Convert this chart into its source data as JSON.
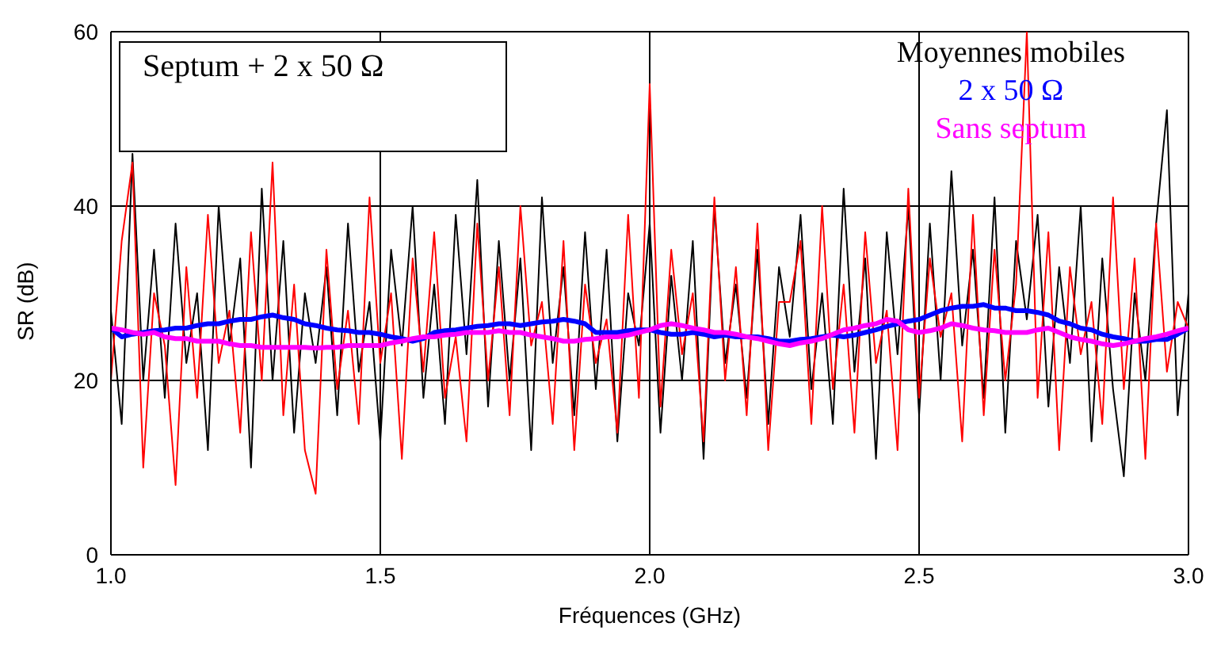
{
  "chart_data": {
    "type": "line",
    "xlabel": "Fréquences (GHz)",
    "ylabel": "SR (dB)",
    "xlim": [
      1.0,
      3.0
    ],
    "xticks": [
      {
        "value": 1.0,
        "label": "1.0"
      },
      1.5,
      {
        "value": 2.0,
        "label": "2.0"
      },
      2.5,
      {
        "value": 3.0,
        "label": "3.0"
      }
    ],
    "ylim": [
      0,
      60
    ],
    "yticks": [
      0,
      20,
      40,
      60
    ],
    "grid": true,
    "legend": "top right",
    "legend_title": "Moyennes mobiles",
    "marker": "none",
    "line_style": "solid",
    "annotations": [
      "Septum + 2 x 50 Ω"
    ],
    "x": [
      1.0,
      1.02,
      1.04,
      1.06,
      1.08,
      1.1,
      1.12,
      1.14,
      1.16,
      1.18,
      1.2,
      1.22,
      1.24,
      1.26,
      1.28,
      1.3,
      1.32,
      1.34,
      1.36,
      1.38,
      1.4,
      1.42,
      1.44,
      1.46,
      1.48,
      1.5,
      1.52,
      1.54,
      1.56,
      1.58,
      1.6,
      1.62,
      1.64,
      1.66,
      1.68,
      1.7,
      1.72,
      1.74,
      1.76,
      1.78,
      1.8,
      1.82,
      1.84,
      1.86,
      1.88,
      1.9,
      1.92,
      1.94,
      1.96,
      1.98,
      2.0,
      2.02,
      2.04,
      2.06,
      2.08,
      2.1,
      2.12,
      2.14,
      2.16,
      2.18,
      2.2,
      2.22,
      2.24,
      2.26,
      2.28,
      2.3,
      2.32,
      2.34,
      2.36,
      2.38,
      2.4,
      2.42,
      2.44,
      2.46,
      2.48,
      2.5,
      2.52,
      2.54,
      2.56,
      2.58,
      2.6,
      2.62,
      2.64,
      2.66,
      2.68,
      2.7,
      2.72,
      2.74,
      2.76,
      2.78,
      2.8,
      2.82,
      2.84,
      2.86,
      2.88,
      2.9,
      2.92,
      2.94,
      2.96,
      2.98,
      3.0
    ],
    "series": [
      {
        "color": "#000000",
        "values": [
          28,
          15,
          46,
          20,
          35,
          18,
          38,
          22,
          30,
          12,
          40,
          24,
          34,
          10,
          42,
          20,
          36,
          14,
          30,
          22,
          33,
          16,
          38,
          21,
          29,
          13,
          35,
          24,
          40,
          18,
          31,
          15,
          39,
          23,
          43,
          17,
          36,
          20,
          34,
          12,
          41,
          22,
          33,
          16,
          37,
          19,
          35,
          13,
          30,
          24,
          38,
          14,
          32,
          20,
          36,
          11,
          40,
          22,
          31,
          18,
          35,
          15,
          33,
          25,
          39,
          19,
          30,
          15,
          42,
          21,
          34,
          11,
          37,
          23,
          40,
          16,
          38,
          20,
          44,
          24,
          35,
          18,
          41,
          14,
          36,
          27,
          39,
          17,
          33,
          22,
          40,
          13,
          34,
          19,
          9,
          30,
          20,
          38,
          51,
          16,
          30
        ]
      },
      {
        "color": "#ff0000",
        "values": [
          20,
          36,
          45,
          10,
          30,
          24,
          8,
          33,
          18,
          39,
          22,
          28,
          14,
          37,
          20,
          45,
          16,
          31,
          12,
          7,
          35,
          19,
          28,
          15,
          41,
          22,
          30,
          11,
          34,
          21,
          37,
          18,
          25,
          13,
          38,
          20,
          33,
          16,
          40,
          24,
          29,
          15,
          36,
          12,
          31,
          22,
          27,
          14,
          39,
          18,
          54,
          17,
          35,
          23,
          30,
          13,
          41,
          20,
          33,
          16,
          38,
          12,
          29,
          29,
          36,
          15,
          40,
          19,
          31,
          14,
          37,
          22,
          28,
          12,
          42,
          18,
          34,
          25,
          30,
          13,
          39,
          16,
          35,
          20,
          31,
          60,
          18,
          37,
          12,
          33,
          23,
          29,
          15,
          41,
          19,
          34,
          11,
          38,
          21,
          29,
          26
        ]
      },
      {
        "name": "2 x 50 Ω",
        "color": "#0000ff",
        "values": [
          26,
          25,
          25.3,
          25.5,
          25.7,
          25.8,
          26,
          26,
          26.3,
          26.5,
          26.5,
          26.8,
          27,
          27,
          27.3,
          27.5,
          27.2,
          27,
          26.5,
          26.3,
          26,
          25.8,
          25.7,
          25.5,
          25.5,
          25.3,
          25,
          24.8,
          24.5,
          24.8,
          25.5,
          25.7,
          25.8,
          26,
          26.2,
          26.3,
          26.5,
          26.5,
          26.3,
          26.5,
          26.7,
          26.8,
          27,
          26.8,
          26.5,
          25.5,
          25.5,
          25.5,
          25.7,
          25.8,
          25.8,
          25.5,
          25.3,
          25.3,
          25.5,
          25.3,
          25,
          25.2,
          25,
          25,
          25,
          24.8,
          24.5,
          24.5,
          24.7,
          24.8,
          25,
          25.2,
          25,
          25.2,
          25.5,
          25.8,
          26.2,
          26.5,
          26.8,
          27,
          27.5,
          28,
          28.3,
          28.5,
          28.5,
          28.7,
          28.3,
          28.3,
          28,
          28,
          27.8,
          27.5,
          26.8,
          26.5,
          26,
          25.8,
          25.3,
          25,
          24.8,
          24.5,
          24.5,
          24.7,
          24.7,
          25.3,
          26
        ]
      },
      {
        "name": "Sans septum",
        "color": "#ff00ff",
        "values": [
          26,
          25.8,
          25.5,
          25.3,
          25.5,
          25,
          24.8,
          24.8,
          24.5,
          24.5,
          24.5,
          24.2,
          24,
          24,
          23.8,
          23.8,
          23.8,
          23.8,
          23.8,
          23.7,
          23.8,
          23.8,
          24,
          24,
          24,
          24,
          24.3,
          24.5,
          24.8,
          25,
          25,
          25.2,
          25.3,
          25.5,
          25.5,
          25.5,
          25.7,
          25.5,
          25.5,
          25.2,
          25,
          24.8,
          24.5,
          24.5,
          24.7,
          24.8,
          25,
          25,
          25.2,
          25.5,
          25.8,
          26.3,
          26.5,
          26.3,
          26,
          25.8,
          25.5,
          25.5,
          25.3,
          25,
          24.8,
          24.5,
          24.2,
          24,
          24.3,
          24.5,
          24.8,
          25.3,
          25.8,
          26,
          26.3,
          26.5,
          27,
          26.8,
          25.8,
          25.5,
          25.7,
          26,
          26.5,
          26.3,
          26,
          25.8,
          25.7,
          25.5,
          25.5,
          25.5,
          25.8,
          26,
          25.5,
          25,
          24.7,
          24.5,
          24.2,
          24,
          24.2,
          24.5,
          24.8,
          25,
          25.3,
          25.7,
          26
        ]
      }
    ]
  }
}
